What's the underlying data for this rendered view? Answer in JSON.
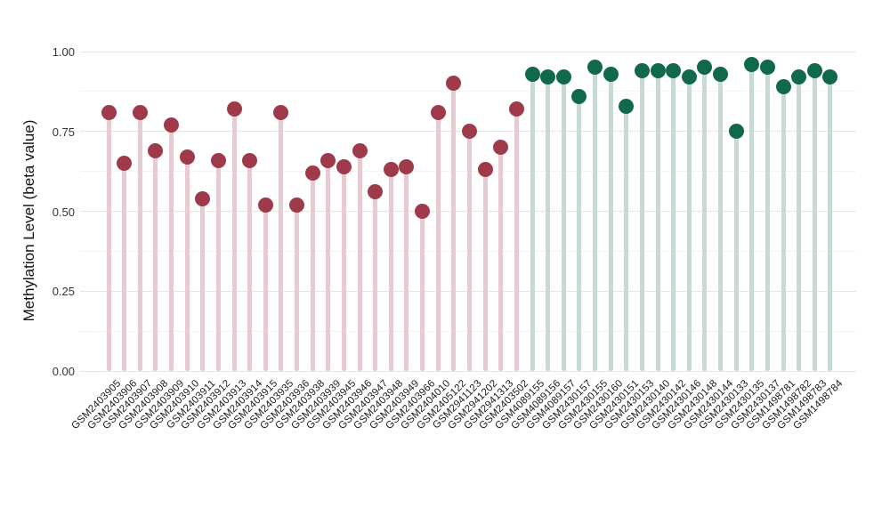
{
  "page": {
    "background": "#ffffff"
  },
  "chart_data": {
    "type": "lollipop",
    "title": "",
    "xlabel": "",
    "ylabel": "Methylation Level (beta value)",
    "ylim": [
      0,
      1
    ],
    "yticks": [
      {
        "value": 1.0,
        "label": "1.00"
      },
      {
        "value": 0.75,
        "label": "0.75"
      },
      {
        "value": 0.5,
        "label": "0.50"
      },
      {
        "value": 0.25,
        "label": "0.25"
      },
      {
        "value": 0.0,
        "label": "0.00"
      }
    ],
    "minor_grid_step": 0.125,
    "grid": true,
    "legend_position": "none",
    "colors": {
      "red_dot": "#9e3a4a",
      "red_stem": "#e6ccd2",
      "green_dot": "#10694a",
      "green_stem": "#c8dbd2",
      "grid_major": "#e6e6e6",
      "grid_minor": "#f2f2f2"
    },
    "series": [
      {
        "name": "red-group",
        "dot_color": "#9e3a4a",
        "stem_color": "#e6ccd2",
        "points": [
          {
            "sample": "GSM2403905",
            "value": 0.81
          },
          {
            "sample": "GSM2403906",
            "value": 0.65
          },
          {
            "sample": "GSM2403907",
            "value": 0.81
          },
          {
            "sample": "GSM2403908",
            "value": 0.69
          },
          {
            "sample": "GSM2403909",
            "value": 0.77
          },
          {
            "sample": "GSM2403910",
            "value": 0.67
          },
          {
            "sample": "GSM2403911",
            "value": 0.54
          },
          {
            "sample": "GSM2403912",
            "value": 0.66
          },
          {
            "sample": "GSM2403913",
            "value": 0.82
          },
          {
            "sample": "GSM2403914",
            "value": 0.66
          },
          {
            "sample": "GSM2403915",
            "value": 0.52
          },
          {
            "sample": "GSM2403935",
            "value": 0.81
          },
          {
            "sample": "GSM2403936",
            "value": 0.52
          },
          {
            "sample": "GSM2403938",
            "value": 0.62
          },
          {
            "sample": "GSM2403939",
            "value": 0.66
          },
          {
            "sample": "GSM2403945",
            "value": 0.64
          },
          {
            "sample": "GSM2403946",
            "value": 0.69
          },
          {
            "sample": "GSM2403947",
            "value": 0.56
          },
          {
            "sample": "GSM2403948",
            "value": 0.63
          },
          {
            "sample": "GSM2403949",
            "value": 0.64
          },
          {
            "sample": "GSM2403966",
            "value": 0.5
          },
          {
            "sample": "GSM2404010",
            "value": 0.81
          },
          {
            "sample": "GSM2405122",
            "value": 0.9
          },
          {
            "sample": "GSM2941123",
            "value": 0.75
          },
          {
            "sample": "GSM2941202",
            "value": 0.63
          },
          {
            "sample": "GSM2941313",
            "value": 0.7
          },
          {
            "sample": "GSM2403502",
            "value": 0.82
          }
        ]
      },
      {
        "name": "green-group",
        "dot_color": "#10694a",
        "stem_color": "#c8dbd2",
        "points": [
          {
            "sample": "GSM4089155",
            "value": 0.93
          },
          {
            "sample": "GSM4089156",
            "value": 0.92
          },
          {
            "sample": "GSM4089157",
            "value": 0.92
          },
          {
            "sample": "GSM2430157",
            "value": 0.86
          },
          {
            "sample": "GSM2430155",
            "value": 0.95
          },
          {
            "sample": "GSM2430160",
            "value": 0.93
          },
          {
            "sample": "GSM2430151",
            "value": 0.83
          },
          {
            "sample": "GSM2430153",
            "value": 0.94
          },
          {
            "sample": "GSM2430140",
            "value": 0.94
          },
          {
            "sample": "GSM2430142",
            "value": 0.94
          },
          {
            "sample": "GSM2430146",
            "value": 0.92
          },
          {
            "sample": "GSM2430148",
            "value": 0.95
          },
          {
            "sample": "GSM2430144",
            "value": 0.93
          },
          {
            "sample": "GSM2430133",
            "value": 0.75
          },
          {
            "sample": "GSM2430135",
            "value": 0.96
          },
          {
            "sample": "GSM2430137",
            "value": 0.95
          },
          {
            "sample": "GSM1498781",
            "value": 0.89
          },
          {
            "sample": "GSM1498782",
            "value": 0.92
          },
          {
            "sample": "GSM1498783",
            "value": 0.94
          },
          {
            "sample": "GSM1498784",
            "value": 0.92
          }
        ]
      }
    ]
  }
}
